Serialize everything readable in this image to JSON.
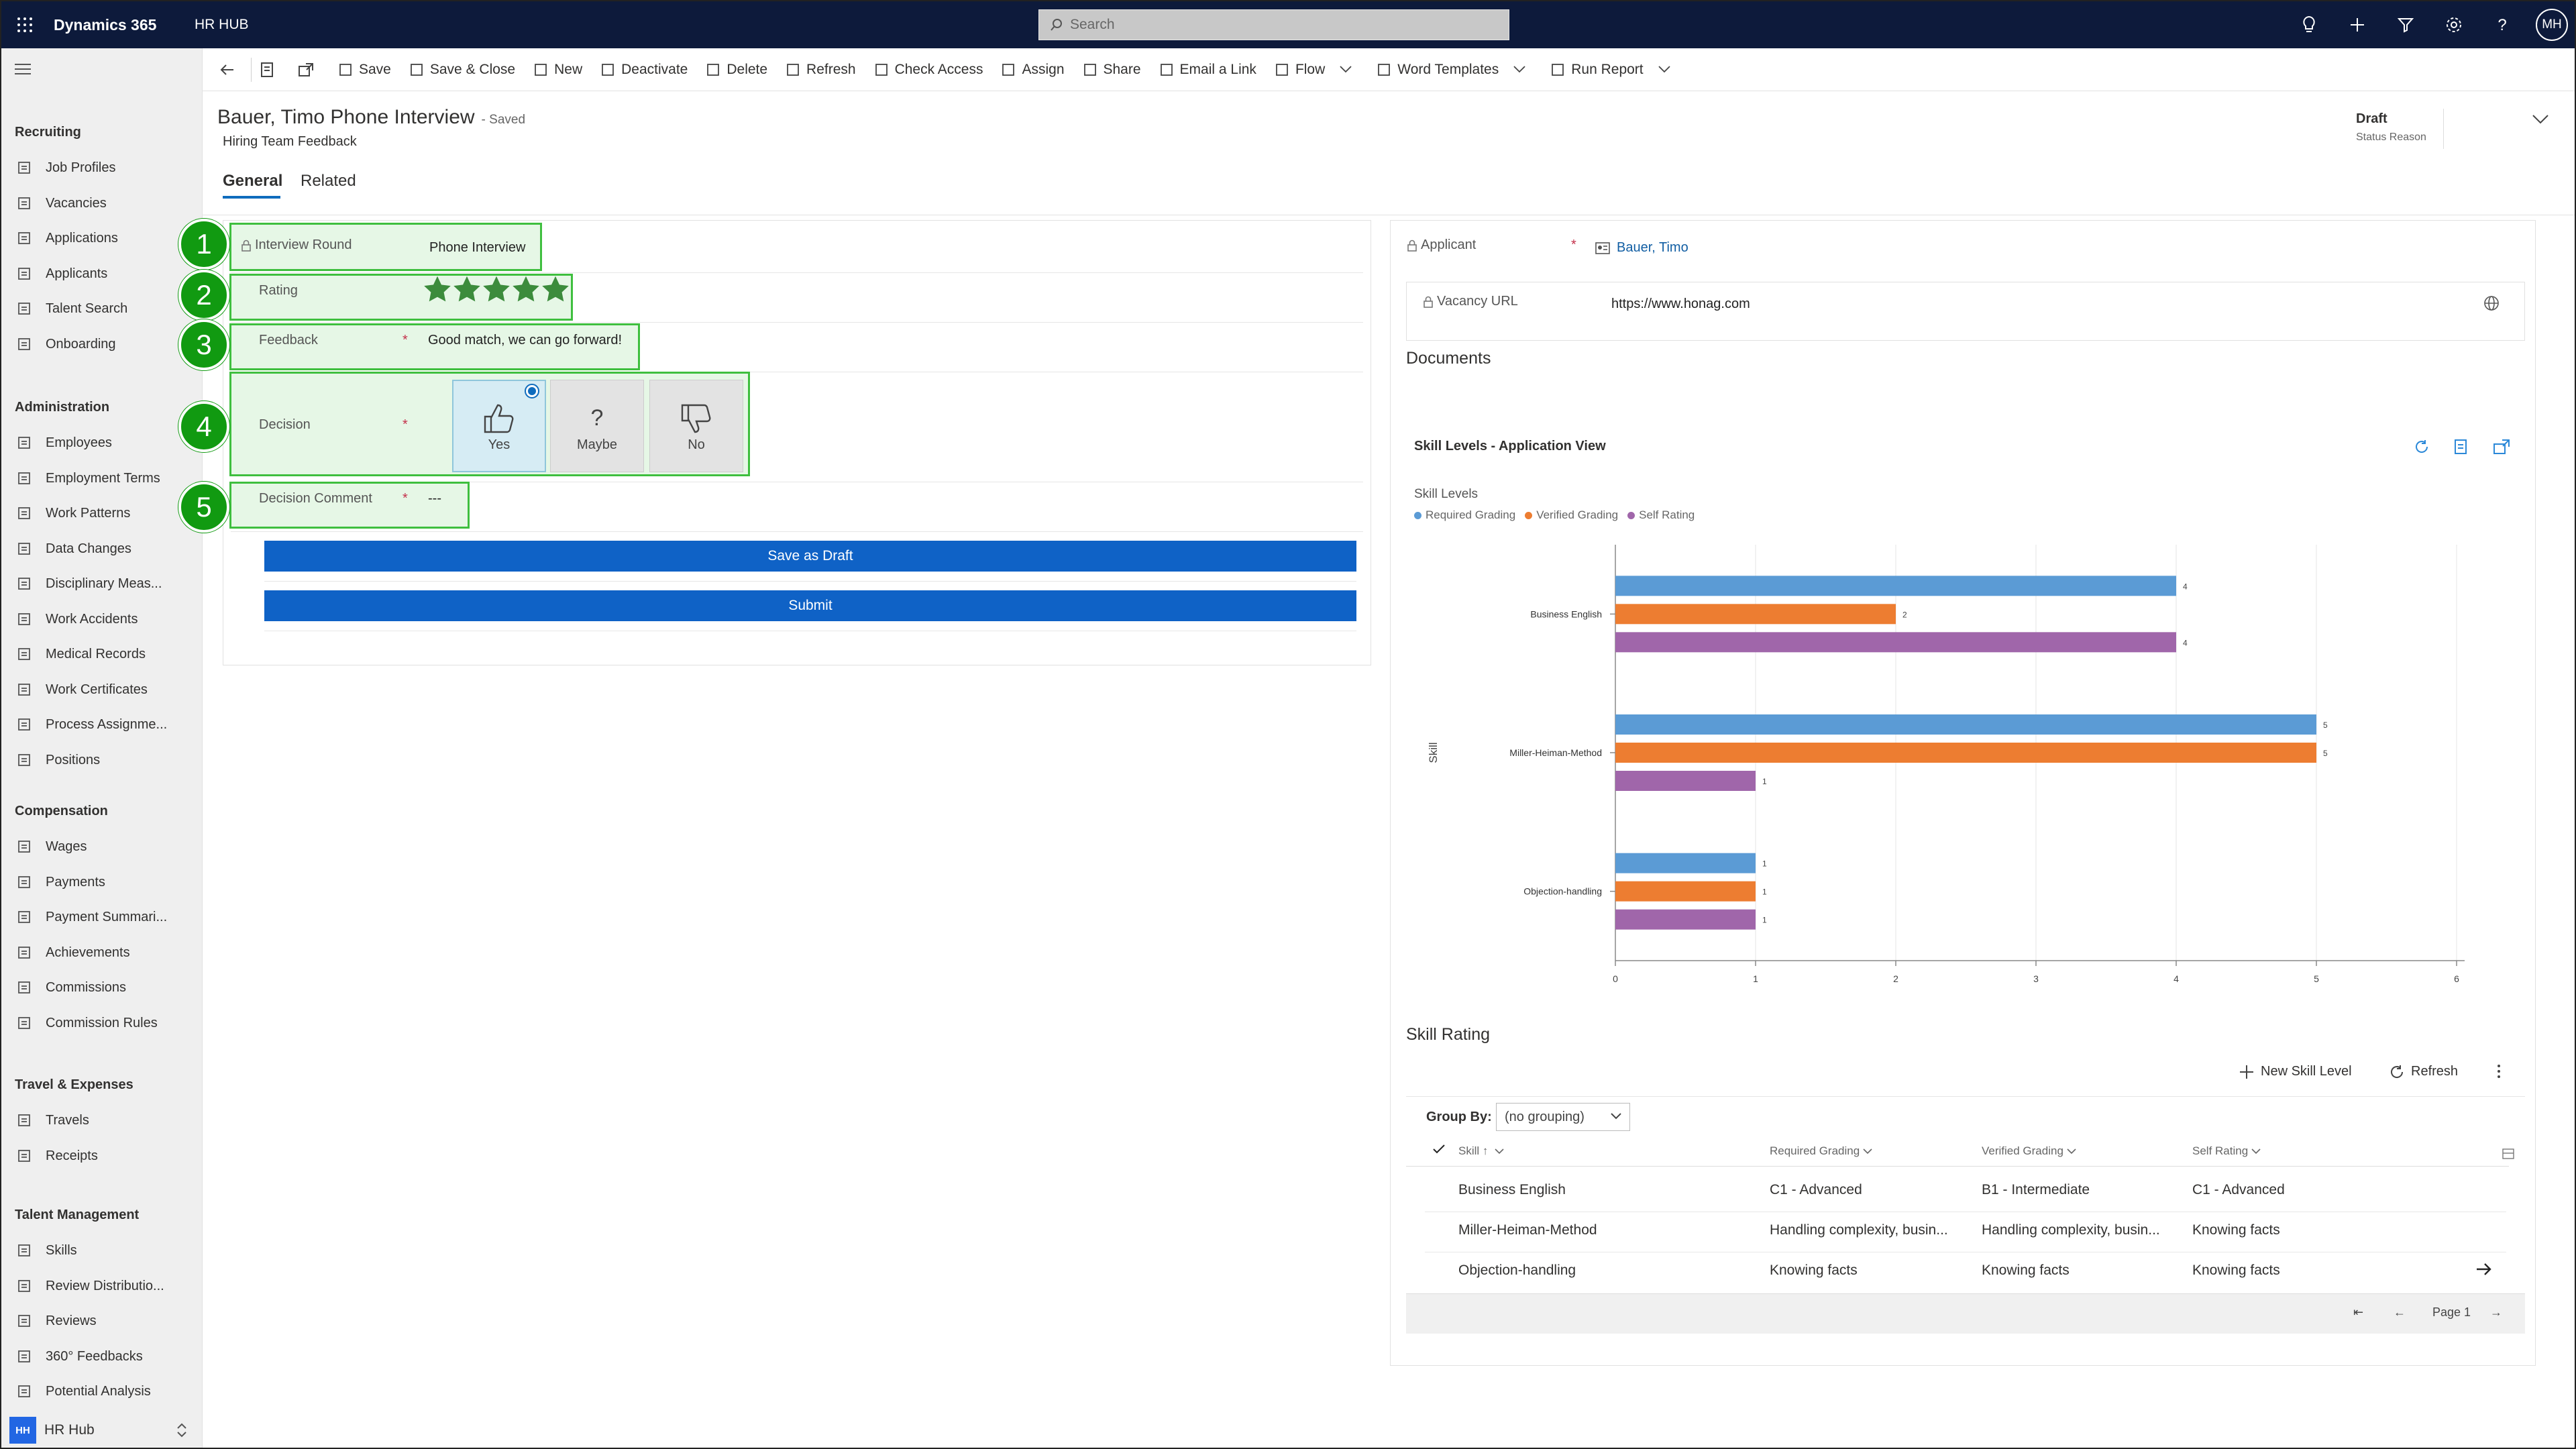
{
  "topbar": {
    "app_name": "Dynamics 365",
    "hub_name": "HR HUB",
    "search_placeholder": "Search",
    "user_initials": "MH"
  },
  "sidebar": {
    "sections": [
      {
        "title": "Recruiting",
        "items": [
          "Job Profiles",
          "Vacancies",
          "Applications",
          "Applicants",
          "Talent Search",
          "Onboarding"
        ]
      },
      {
        "title": "Administration",
        "items": [
          "Employees",
          "Employment Terms",
          "Work Patterns",
          "Data Changes",
          "Disciplinary Meas...",
          "Work Accidents",
          "Medical Records",
          "Work Certificates",
          "Process Assignme...",
          "Positions"
        ]
      },
      {
        "title": "Compensation",
        "items": [
          "Wages",
          "Payments",
          "Payment Summari...",
          "Achievements",
          "Commissions",
          "Commission Rules"
        ]
      },
      {
        "title": "Travel & Expenses",
        "items": [
          "Travels",
          "Receipts"
        ]
      },
      {
        "title": "Talent Management",
        "items": [
          "Skills",
          "Review Distributio...",
          "Reviews",
          "360° Feedbacks",
          "Potential Analysis"
        ]
      }
    ],
    "area_switch": {
      "initials": "HH",
      "label": "HR Hub"
    }
  },
  "commands": [
    "Save",
    "Save & Close",
    "New",
    "Deactivate",
    "Delete",
    "Refresh",
    "Check Access",
    "Assign",
    "Share",
    "Email a Link",
    "Flow",
    "Word Templates",
    "Run Report"
  ],
  "header": {
    "title": "Bauer, Timo  Phone Interview",
    "saved": "- Saved",
    "form_name": "Hiring Team Feedback",
    "status_value": "Draft",
    "status_label": "Status Reason"
  },
  "tabs": [
    "General",
    "Related"
  ],
  "form": {
    "badges": [
      "1",
      "2",
      "3",
      "4",
      "5"
    ],
    "interview_round_label": "Interview Round",
    "interview_round_value": "Phone Interview",
    "rating_label": "Rating",
    "rating_value": 5,
    "rating_max": 5,
    "feedback_label": "Feedback",
    "feedback_value": "Good match, we can go forward!",
    "required_mark": "*",
    "decision_label": "Decision",
    "decision_options": [
      "Yes",
      "Maybe",
      "No"
    ],
    "decision_selected": "Yes",
    "decision_comment_label": "Decision Comment",
    "decision_comment_value": "---",
    "save_draft_label": "Save as Draft",
    "submit_label": "Submit"
  },
  "right": {
    "applicant_label": "Applicant",
    "applicant_value": "Bauer, Timo",
    "vacancy_url_label": "Vacancy URL",
    "vacancy_url_value": "https://www.honag.com",
    "documents_title": "Documents",
    "chart_title": "Skill Levels - Application View",
    "skill_rating_title": "Skill Rating",
    "new_skill_level": "New Skill Level",
    "refresh": "Refresh",
    "group_by_label": "Group By:",
    "group_by_value": "(no grouping)",
    "columns": [
      "Skill",
      "Required Grading",
      "Verified Grading",
      "Self Rating"
    ],
    "rows": [
      [
        "Business English",
        "C1 - Advanced",
        "B1 - Intermediate",
        "C1 - Advanced"
      ],
      [
        "Miller-Heiman-Method",
        "Handling complexity, busin...",
        "Handling complexity, busin...",
        "Knowing facts"
      ],
      [
        "Objection-handling",
        "Knowing facts",
        "Knowing facts",
        "Knowing facts"
      ]
    ],
    "page_label": "Page 1"
  },
  "chart_data": {
    "type": "bar",
    "orientation": "horizontal",
    "subtitle": "Skill Levels",
    "ylabel": "Skill",
    "xlabel": "",
    "categories": [
      "Business English",
      "Miller-Heiman-Method",
      "Objection-handling"
    ],
    "series": [
      {
        "name": "Required Grading",
        "values": [
          4,
          5,
          1
        ],
        "color": "#5b9bd5"
      },
      {
        "name": "Verified Grading",
        "values": [
          2,
          5,
          1
        ],
        "color": "#ed7d31"
      },
      {
        "name": "Self Rating",
        "values": [
          4,
          1,
          1
        ],
        "color": "#a066aa"
      }
    ],
    "xlim": [
      0,
      6
    ],
    "xticks": [
      "0",
      "1",
      "2",
      "3",
      "4",
      "5",
      "6"
    ],
    "legend_position": "top-left",
    "grid": true
  },
  "colors": {
    "topbar": "#0d1a3b",
    "accent": "#0f62c6",
    "highlight": "#3fbf3f",
    "badge": "#119a11"
  }
}
